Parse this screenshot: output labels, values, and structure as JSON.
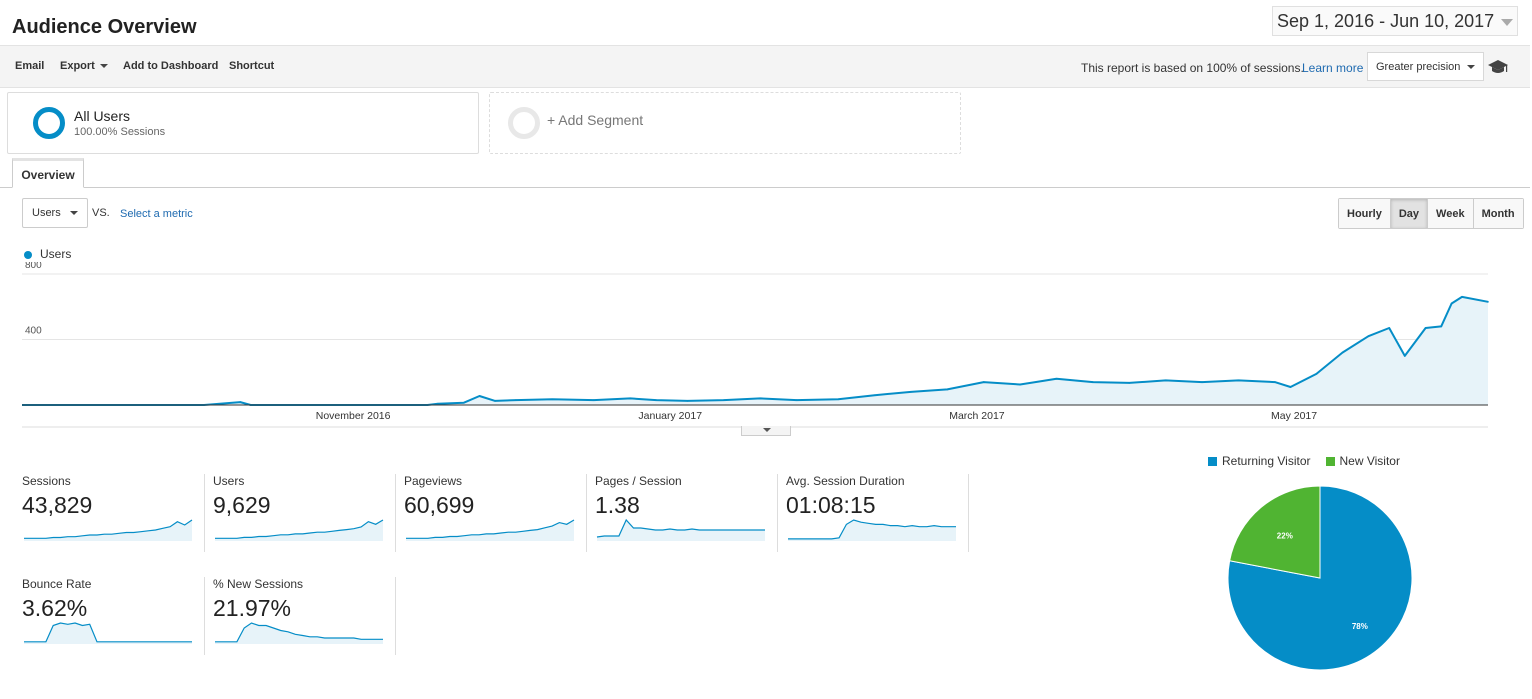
{
  "header": {
    "title": "Audience Overview",
    "date_range": "Sep 1, 2016 - Jun 10, 2017"
  },
  "toolbar": {
    "email": "Email",
    "export": "Export",
    "add_to_dashboard": "Add to Dashboard",
    "shortcut": "Shortcut",
    "report_note": "This report is based on 100% of sessions.",
    "learn_more": "Learn more",
    "precision": "Greater precision",
    "icons": [
      "caret-down-icon",
      "graduation-cap-icon"
    ]
  },
  "segments": {
    "all_users": {
      "name": "All Users",
      "sub": "100.00% Sessions"
    },
    "add_segment": "+ Add Segment"
  },
  "tabs": {
    "overview": "Overview"
  },
  "controls": {
    "metric": "Users",
    "vs": "VS.",
    "select_metric": "Select a metric",
    "granularity": [
      "Hourly",
      "Day",
      "Week",
      "Month"
    ],
    "active_granularity": "Day"
  },
  "colors": {
    "blue": "#058dc7",
    "green": "#50b432",
    "area_fill": "#e7f3f9"
  },
  "chart_data": [
    {
      "type": "area",
      "legend": "Users",
      "x_labels": [
        "November 2016",
        "January 2017",
        "March 2017",
        "May 2017"
      ],
      "x_range": [
        "2016-09-01",
        "2017-06-10"
      ],
      "y_ticks": [
        "800",
        "400"
      ],
      "ylim": [
        0,
        800
      ],
      "series": [
        {
          "name": "Users",
          "points": [
            [
              "2016-09-01",
              0
            ],
            [
              "2016-10-06",
              0
            ],
            [
              "2016-10-13",
              18
            ],
            [
              "2016-10-15",
              0
            ],
            [
              "2016-10-30",
              0
            ],
            [
              "2016-11-10",
              0
            ],
            [
              "2016-11-18",
              0
            ],
            [
              "2016-11-20",
              8
            ],
            [
              "2016-11-25",
              14
            ],
            [
              "2016-11-28",
              55
            ],
            [
              "2016-12-01",
              25
            ],
            [
              "2016-12-05",
              30
            ],
            [
              "2016-12-12",
              35
            ],
            [
              "2016-12-20",
              30
            ],
            [
              "2016-12-27",
              40
            ],
            [
              "2017-01-01",
              30
            ],
            [
              "2017-01-07",
              25
            ],
            [
              "2017-01-14",
              30
            ],
            [
              "2017-01-21",
              40
            ],
            [
              "2017-01-28",
              30
            ],
            [
              "2017-02-05",
              35
            ],
            [
              "2017-02-12",
              60
            ],
            [
              "2017-02-19",
              80
            ],
            [
              "2017-02-26",
              95
            ],
            [
              "2017-03-05",
              140
            ],
            [
              "2017-03-12",
              125
            ],
            [
              "2017-03-19",
              160
            ],
            [
              "2017-03-26",
              140
            ],
            [
              "2017-04-02",
              135
            ],
            [
              "2017-04-09",
              150
            ],
            [
              "2017-04-16",
              140
            ],
            [
              "2017-04-23",
              150
            ],
            [
              "2017-04-30",
              140
            ],
            [
              "2017-05-03",
              110
            ],
            [
              "2017-05-08",
              190
            ],
            [
              "2017-05-13",
              320
            ],
            [
              "2017-05-18",
              420
            ],
            [
              "2017-05-22",
              470
            ],
            [
              "2017-05-25",
              300
            ],
            [
              "2017-05-29",
              470
            ],
            [
              "2017-06-01",
              480
            ],
            [
              "2017-06-03",
              620
            ],
            [
              "2017-06-05",
              660
            ],
            [
              "2017-06-10",
              630
            ]
          ]
        }
      ]
    },
    {
      "type": "pie",
      "legend": [
        "Returning Visitor",
        "New Visitor"
      ],
      "values": [
        78,
        22
      ],
      "labels": [
        "78%",
        "22%"
      ]
    }
  ],
  "metrics": [
    {
      "label": "Sessions",
      "value": "43,829",
      "trend": [
        2,
        2,
        2,
        2,
        3,
        3,
        4,
        4,
        5,
        6,
        6,
        7,
        7,
        8,
        9,
        9,
        10,
        11,
        12,
        14,
        16,
        22,
        18,
        24
      ]
    },
    {
      "label": "Users",
      "value": "9,629",
      "trend": [
        2,
        2,
        2,
        2,
        3,
        3,
        4,
        4,
        5,
        6,
        6,
        7,
        7,
        8,
        9,
        9,
        10,
        11,
        12,
        13,
        15,
        21,
        18,
        23
      ]
    },
    {
      "label": "Pageviews",
      "value": "60,699",
      "trend": [
        2,
        2,
        2,
        2,
        3,
        3,
        4,
        4,
        5,
        6,
        6,
        7,
        7,
        8,
        9,
        9,
        10,
        11,
        12,
        14,
        16,
        20,
        18,
        23
      ]
    },
    {
      "label": "Pages / Session",
      "value": "1.38",
      "trend": [
        3,
        4,
        4,
        4,
        20,
        12,
        12,
        11,
        10,
        10,
        11,
        10,
        10,
        11,
        10,
        10,
        10,
        10,
        10,
        10,
        10,
        10,
        10,
        10
      ]
    },
    {
      "label": "Avg. Session Duration",
      "value": "01:08:15",
      "trend": [
        1,
        1,
        1,
        1,
        1,
        1,
        1,
        2,
        14,
        18,
        16,
        15,
        14,
        14,
        13,
        13,
        12,
        13,
        12,
        12,
        13,
        12,
        12,
        12
      ]
    },
    {
      "label": "Bounce Rate",
      "value": "3.62%",
      "trend": [
        1,
        1,
        1,
        1,
        14,
        16,
        15,
        16,
        14,
        15,
        1,
        1,
        1,
        1,
        1,
        1,
        1,
        1,
        1,
        1,
        1,
        1,
        1,
        1
      ]
    },
    {
      "label": "% New Sessions",
      "value": "21.97%",
      "trend": [
        1,
        1,
        1,
        1,
        12,
        16,
        14,
        14,
        12,
        10,
        9,
        7,
        6,
        5,
        5,
        4,
        4,
        4,
        4,
        4,
        3,
        3,
        3,
        3
      ]
    }
  ]
}
